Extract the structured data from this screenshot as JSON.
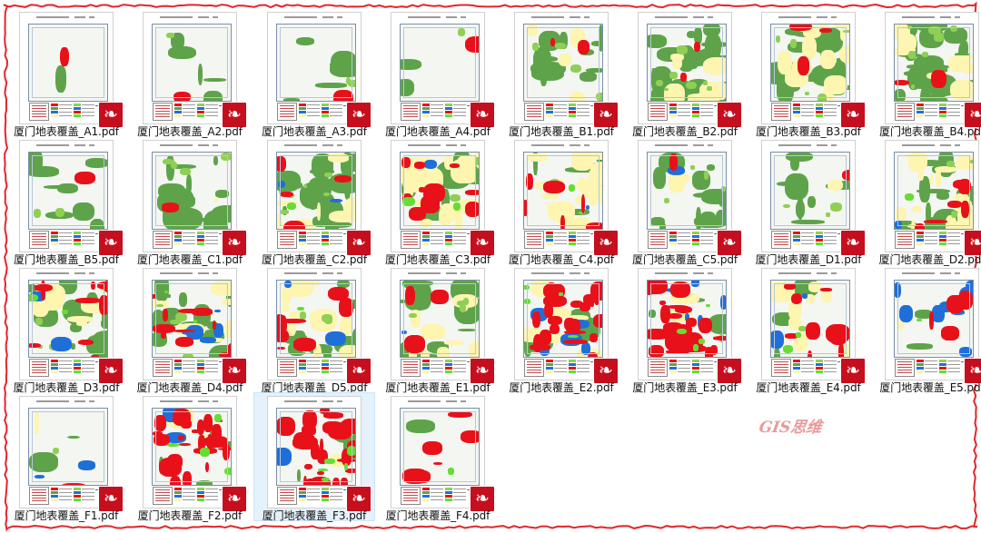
{
  "colors": {
    "border": "#e3262b",
    "selected_bg": "#e5f1fb",
    "pdf_red": "#c50f1f",
    "forest": "#5ea34a",
    "grass": "#8fcf55",
    "farmland": "#fdf5b0",
    "built": "#e8111a",
    "water": "#1f6fd9",
    "bright_green": "#66dd33",
    "light_bg": "#f2f4f0"
  },
  "folder": {
    "files": [
      {
        "name": "厦门地表覆盖_A1.pdf",
        "icon": "pdf-icon",
        "cover": {
          "forest": 0.02,
          "farm": 0.0,
          "built": 0.01,
          "water": 0.0
        }
      },
      {
        "name": "厦门地表覆盖_A2.pdf",
        "icon": "pdf-icon",
        "cover": {
          "forest": 0.12,
          "farm": 0.0,
          "built": 0.01,
          "water": 0.0
        }
      },
      {
        "name": "厦门地表覆盖_A3.pdf",
        "icon": "pdf-icon",
        "cover": {
          "forest": 0.14,
          "farm": 0.01,
          "built": 0.01,
          "water": 0.0
        }
      },
      {
        "name": "厦门地表覆盖_A4.pdf",
        "icon": "pdf-icon",
        "cover": {
          "forest": 0.06,
          "farm": 0.0,
          "built": 0.01,
          "water": 0.0
        }
      },
      {
        "name": "厦门地表覆盖_B1.pdf",
        "icon": "pdf-icon",
        "cover": {
          "forest": 0.3,
          "farm": 0.1,
          "built": 0.03,
          "water": 0.0
        }
      },
      {
        "name": "厦门地表覆盖_B2.pdf",
        "icon": "pdf-icon",
        "cover": {
          "forest": 0.55,
          "farm": 0.25,
          "built": 0.04,
          "water": 0.0
        }
      },
      {
        "name": "厦门地表覆盖_B3.pdf",
        "icon": "pdf-icon",
        "cover": {
          "forest": 0.45,
          "farm": 0.35,
          "built": 0.05,
          "water": 0.01
        }
      },
      {
        "name": "厦门地表覆盖_B4.pdf",
        "icon": "pdf-icon",
        "cover": {
          "forest": 0.55,
          "farm": 0.25,
          "built": 0.04,
          "water": 0.01
        }
      },
      {
        "name": "厦门地表覆盖_B5.pdf",
        "icon": "pdf-icon",
        "cover": {
          "forest": 0.2,
          "farm": 0.0,
          "built": 0.01,
          "water": 0.0
        }
      },
      {
        "name": "厦门地表覆盖_C1.pdf",
        "icon": "pdf-icon",
        "cover": {
          "forest": 0.35,
          "farm": 0.02,
          "built": 0.01,
          "water": 0.0
        }
      },
      {
        "name": "厦门地表覆盖_C2.pdf",
        "icon": "pdf-icon",
        "cover": {
          "forest": 0.5,
          "farm": 0.2,
          "built": 0.08,
          "water": 0.06
        }
      },
      {
        "name": "厦门地表覆盖_C3.pdf",
        "icon": "pdf-icon",
        "cover": {
          "forest": 0.2,
          "farm": 0.45,
          "built": 0.22,
          "water": 0.04
        }
      },
      {
        "name": "厦门地表覆盖_C4.pdf",
        "icon": "pdf-icon",
        "cover": {
          "forest": 0.15,
          "farm": 0.6,
          "built": 0.12,
          "water": 0.03
        }
      },
      {
        "name": "厦门地表覆盖_C5.pdf",
        "icon": "pdf-icon",
        "cover": {
          "forest": 0.35,
          "farm": 0.05,
          "built": 0.02,
          "water": 0.02
        }
      },
      {
        "name": "厦门地表覆盖_D1.pdf",
        "icon": "pdf-icon",
        "cover": {
          "forest": 0.25,
          "farm": 0.03,
          "built": 0.01,
          "water": 0.01
        }
      },
      {
        "name": "厦门地表覆盖_D2.pdf",
        "icon": "pdf-icon",
        "cover": {
          "forest": 0.35,
          "farm": 0.4,
          "built": 0.12,
          "water": 0.03
        }
      },
      {
        "name": "厦门地表覆盖_D3.pdf",
        "icon": "pdf-icon",
        "cover": {
          "forest": 0.35,
          "farm": 0.2,
          "built": 0.2,
          "water": 0.08
        }
      },
      {
        "name": "厦门地表覆盖_D4.pdf",
        "icon": "pdf-icon",
        "cover": {
          "forest": 0.3,
          "farm": 0.15,
          "built": 0.22,
          "water": 0.18
        }
      },
      {
        "name": "厦门地表覆盖_D5.pdf",
        "icon": "pdf-icon",
        "cover": {
          "forest": 0.25,
          "farm": 0.35,
          "built": 0.15,
          "water": 0.08
        }
      },
      {
        "name": "厦门地表覆盖_E1.pdf",
        "icon": "pdf-icon",
        "cover": {
          "forest": 0.35,
          "farm": 0.25,
          "built": 0.05,
          "water": 0.03
        }
      },
      {
        "name": "厦门地表覆盖_E2.pdf",
        "icon": "pdf-icon",
        "cover": {
          "forest": 0.1,
          "farm": 0.15,
          "built": 0.45,
          "water": 0.2
        }
      },
      {
        "name": "厦门地表覆盖_E3.pdf",
        "icon": "pdf-icon",
        "cover": {
          "forest": 0.08,
          "farm": 0.05,
          "built": 0.45,
          "water": 0.2
        }
      },
      {
        "name": "厦门地表覆盖_E4.pdf",
        "icon": "pdf-icon",
        "cover": {
          "forest": 0.08,
          "farm": 0.25,
          "built": 0.18,
          "water": 0.05
        }
      },
      {
        "name": "厦门地表覆盖_E5.pdf",
        "icon": "pdf-icon",
        "cover": {
          "forest": 0.04,
          "farm": 0.02,
          "built": 0.08,
          "water": 0.25
        }
      },
      {
        "name": "厦门地表覆盖_F1.pdf",
        "icon": "pdf-icon",
        "cover": {
          "forest": 0.05,
          "farm": 0.02,
          "built": 0.02,
          "water": 0.05
        }
      },
      {
        "name": "厦门地表覆盖_F2.pdf",
        "icon": "pdf-icon",
        "cover": {
          "forest": 0.1,
          "farm": 0.05,
          "built": 0.45,
          "water": 0.05
        }
      },
      {
        "name": "厦门地表覆盖_F3.pdf",
        "icon": "pdf-icon",
        "selected": true,
        "cover": {
          "forest": 0.15,
          "farm": 0.05,
          "built": 0.55,
          "water": 0.02
        }
      },
      {
        "name": "厦门地表覆盖_F4.pdf",
        "icon": "pdf-icon",
        "cover": {
          "forest": 0.02,
          "farm": 0.0,
          "built": 0.12,
          "water": 0.01
        }
      }
    ]
  },
  "watermark": {
    "text": "GIS思维"
  }
}
